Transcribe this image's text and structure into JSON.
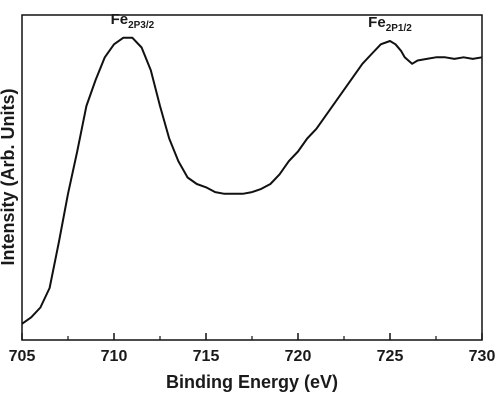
{
  "chart_data": {
    "type": "line",
    "xlabel": "Binding Energy (eV)",
    "ylabel": "Intensity (Arb. Units)",
    "xlim": [
      705,
      730
    ],
    "ylim": [
      0,
      100
    ],
    "x_ticks": [
      705,
      710,
      715,
      720,
      725,
      730
    ],
    "y_tick_labels_shown": false,
    "grid": false,
    "line_color": "#111111",
    "series": [
      {
        "x": [
          705.0,
          705.5,
          706.0,
          706.5,
          707.0,
          707.5,
          708.0,
          708.5,
          709.0,
          709.5,
          710.0,
          710.5,
          711.0,
          711.5,
          712.0,
          712.5,
          713.0,
          713.5,
          714.0,
          714.5,
          715.0,
          715.5,
          716.0,
          716.5,
          717.0,
          717.5,
          718.0,
          718.5,
          719.0,
          719.5,
          720.0,
          720.5,
          721.0,
          721.5,
          722.0,
          722.5,
          723.0,
          723.5,
          724.0,
          724.5,
          725.0,
          725.3,
          725.6,
          725.8,
          726.0,
          726.2,
          726.5,
          727.0,
          727.5,
          728.0,
          728.5,
          729.0,
          729.5,
          730.0
        ],
        "y": [
          5,
          7,
          10,
          16,
          30,
          45,
          58,
          72,
          80,
          87,
          91,
          93,
          93,
          90,
          83,
          72,
          62,
          55,
          50,
          48,
          47,
          45.5,
          45,
          45,
          45,
          45.5,
          46.5,
          48,
          51,
          55,
          58,
          62,
          65,
          69,
          73,
          77,
          81,
          85,
          88,
          91,
          92,
          91,
          89,
          87,
          86,
          85,
          86,
          86.5,
          87,
          87,
          86.5,
          87,
          86.5,
          87
        ]
      }
    ],
    "annotations": [
      {
        "base": "Fe",
        "sub": "2P3/2",
        "x": 711.0,
        "y": 93
      },
      {
        "base": "Fe",
        "sub": "2P1/2",
        "x": 725.0,
        "y": 92
      }
    ]
  }
}
